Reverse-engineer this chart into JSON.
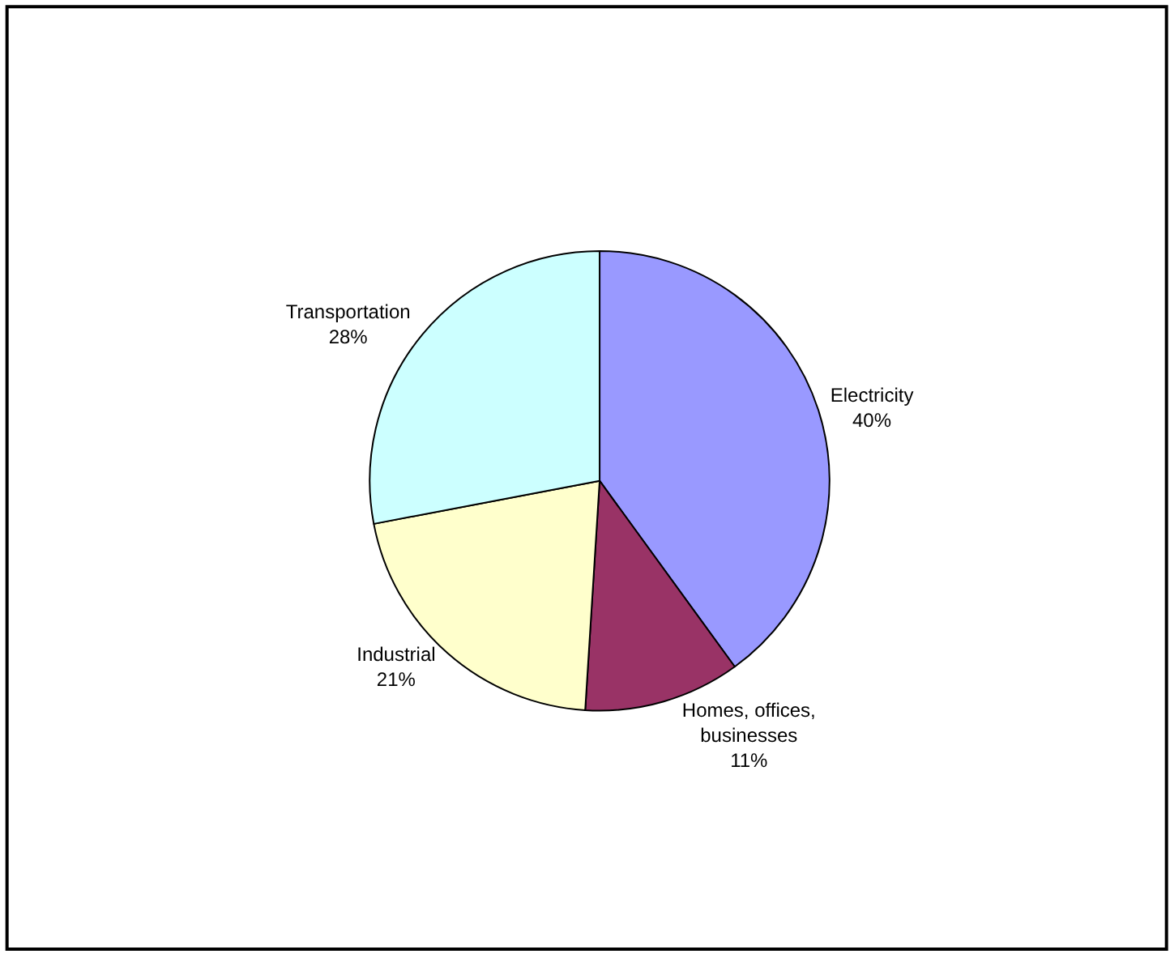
{
  "chart_data": {
    "type": "pie",
    "categories": [
      "Electricity",
      "Homes, offices,\nbusinesses",
      "Industrial",
      "Transportation"
    ],
    "values": [
      40,
      11,
      21,
      28
    ],
    "value_labels": [
      "40%",
      "11%",
      "21%",
      "28%"
    ],
    "colors": [
      "#9999ff",
      "#993366",
      "#ffffcc",
      "#ccffff"
    ],
    "legend": false
  }
}
